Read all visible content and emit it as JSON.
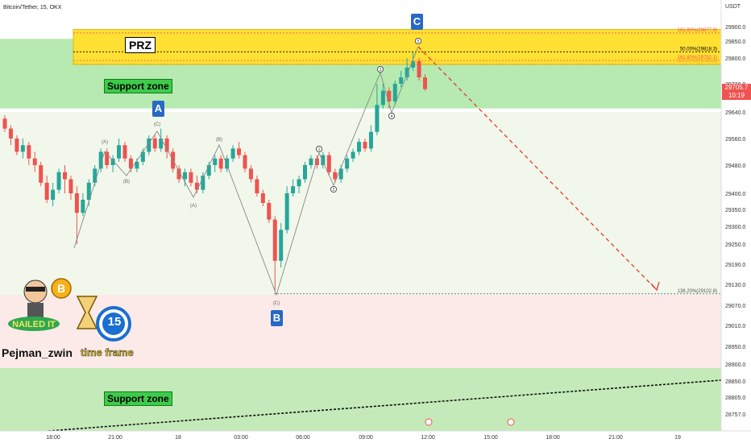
{
  "header": {
    "title": "Bitcoin/Tether, 15, OKX",
    "currency": "USDT"
  },
  "chart_data": {
    "type": "candlestick",
    "ylim": [
      28720,
      29950
    ],
    "y_ticks": [
      29900.0,
      29850.0,
      29800.0,
      29720.0,
      29640.0,
      29560.0,
      29480.0,
      29400.0,
      29350.0,
      29300.0,
      29250.0,
      29190.0,
      29130.0,
      29070.0,
      29010.0,
      28950.0,
      28900.0,
      28850.0,
      28805.0,
      28757.0
    ],
    "x_ticks": [
      "18:00",
      "21:00",
      "18",
      "03:00",
      "06:00",
      "09:00",
      "12:00",
      "15:00",
      "18:00",
      "21:00",
      "19"
    ],
    "current_price": "29705.7",
    "countdown": "10:19",
    "fib_levels": [
      {
        "label": "161.80%(29877.9)",
        "value": 29877.9,
        "color": "#ef5350"
      },
      {
        "label": "50.00%(29818.3)",
        "value": 29818.3,
        "color": "#000000"
      },
      {
        "label": "161.80%(29792.1)",
        "value": 29792.1,
        "color": "#ef5350"
      },
      {
        "label": "300.00%(29780.8)",
        "value": 29780.8,
        "color": "#f7a21b"
      },
      {
        "label": "138.20%(29102.8)",
        "value": 29102.8,
        "color": "#555555"
      }
    ],
    "zones": {
      "prz": {
        "label": "PRZ",
        "from": 29780,
        "to": 29890,
        "color": "#ffe033"
      },
      "support_upper": {
        "label": "Support zone",
        "from": 29650,
        "to": 29880,
        "color": "#b6eab1"
      },
      "support_lower": {
        "label": "Support zone",
        "from": 28720,
        "to": 28890,
        "color": "#c4eab9"
      }
    },
    "wave_labels": {
      "A": "A",
      "B": "B",
      "C": "C",
      "sub": [
        "(A)",
        "(B)",
        "(C)",
        "(A)",
        "(B)",
        "(C)"
      ],
      "impulse": [
        "1",
        "2",
        "3",
        "4",
        "5"
      ]
    }
  },
  "annotations": {
    "author": "Pejman_zwin",
    "timeframe_text": "time frame",
    "timeframe_number": "15",
    "badge_text": "NAILED IT"
  },
  "colors": {
    "up": "#26a69a",
    "down": "#ef5350",
    "accent": "#2868c6"
  }
}
